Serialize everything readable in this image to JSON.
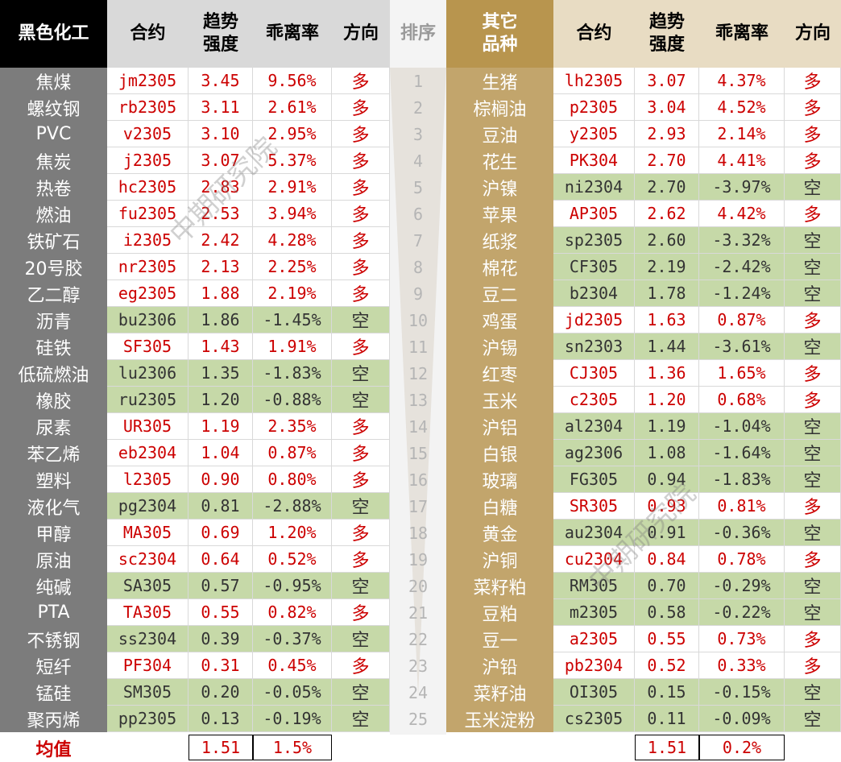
{
  "headers": {
    "left_category": "黑色化工",
    "contract": "合约",
    "strength_line1": "趋势",
    "strength_line2": "强度",
    "deviation": "乖离率",
    "direction": "方向",
    "rank": "排序",
    "right_category_line1": "其它",
    "right_category_line2": "品种"
  },
  "colors": {
    "long_text": "#cc0000",
    "short_text": "#333333",
    "short_bg": "#c6d9a8",
    "long_bg": "#ffffff",
    "left_name_bg": "#7c7c7c",
    "right_name_bg": "#c2a56c"
  },
  "left_rows": [
    {
      "name": "焦煤",
      "contract": "jm2305",
      "strength": "3.45",
      "deviation": "9.56%",
      "dir": "多"
    },
    {
      "name": "螺纹钢",
      "contract": "rb2305",
      "strength": "3.11",
      "deviation": "2.61%",
      "dir": "多"
    },
    {
      "name": "PVC",
      "contract": "v2305",
      "strength": "3.10",
      "deviation": "2.95%",
      "dir": "多"
    },
    {
      "name": "焦炭",
      "contract": "j2305",
      "strength": "3.07",
      "deviation": "5.37%",
      "dir": "多"
    },
    {
      "name": "热卷",
      "contract": "hc2305",
      "strength": "2.83",
      "deviation": "2.91%",
      "dir": "多"
    },
    {
      "name": "燃油",
      "contract": "fu2305",
      "strength": "2.53",
      "deviation": "3.94%",
      "dir": "多"
    },
    {
      "name": "铁矿石",
      "contract": "i2305",
      "strength": "2.42",
      "deviation": "4.28%",
      "dir": "多"
    },
    {
      "name": "20号胶",
      "contract": "nr2305",
      "strength": "2.13",
      "deviation": "2.25%",
      "dir": "多"
    },
    {
      "name": "乙二醇",
      "contract": "eg2305",
      "strength": "1.88",
      "deviation": "2.19%",
      "dir": "多"
    },
    {
      "name": "沥青",
      "contract": "bu2306",
      "strength": "1.86",
      "deviation": "-1.45%",
      "dir": "空"
    },
    {
      "name": "硅铁",
      "contract": "SF305",
      "strength": "1.43",
      "deviation": "1.91%",
      "dir": "多"
    },
    {
      "name": "低硫燃油",
      "contract": "lu2306",
      "strength": "1.35",
      "deviation": "-1.83%",
      "dir": "空"
    },
    {
      "name": "橡胶",
      "contract": "ru2305",
      "strength": "1.20",
      "deviation": "-0.88%",
      "dir": "空"
    },
    {
      "name": "尿素",
      "contract": "UR305",
      "strength": "1.19",
      "deviation": "2.35%",
      "dir": "多"
    },
    {
      "name": "苯乙烯",
      "contract": "eb2304",
      "strength": "1.04",
      "deviation": "0.87%",
      "dir": "多"
    },
    {
      "name": "塑料",
      "contract": "l2305",
      "strength": "0.90",
      "deviation": "0.80%",
      "dir": "多"
    },
    {
      "name": "液化气",
      "contract": "pg2304",
      "strength": "0.81",
      "deviation": "-2.88%",
      "dir": "空"
    },
    {
      "name": "甲醇",
      "contract": "MA305",
      "strength": "0.69",
      "deviation": "1.20%",
      "dir": "多"
    },
    {
      "name": "原油",
      "contract": "sc2304",
      "strength": "0.64",
      "deviation": "0.52%",
      "dir": "多"
    },
    {
      "name": "纯碱",
      "contract": "SA305",
      "strength": "0.57",
      "deviation": "-0.95%",
      "dir": "空"
    },
    {
      "name": "PTA",
      "contract": "TA305",
      "strength": "0.55",
      "deviation": "0.82%",
      "dir": "多"
    },
    {
      "name": "不锈钢",
      "contract": "ss2304",
      "strength": "0.39",
      "deviation": "-0.37%",
      "dir": "空"
    },
    {
      "name": "短纤",
      "contract": "PF304",
      "strength": "0.31",
      "deviation": "0.45%",
      "dir": "多"
    },
    {
      "name": "锰硅",
      "contract": "SM305",
      "strength": "0.20",
      "deviation": "-0.05%",
      "dir": "空"
    },
    {
      "name": "聚丙烯",
      "contract": "pp2305",
      "strength": "0.13",
      "deviation": "-0.19%",
      "dir": "空"
    }
  ],
  "ranks": [
    "1",
    "2",
    "3",
    "4",
    "5",
    "6",
    "7",
    "8",
    "9",
    "10",
    "11",
    "12",
    "13",
    "14",
    "15",
    "16",
    "17",
    "18",
    "19",
    "20",
    "21",
    "22",
    "23",
    "24",
    "25"
  ],
  "right_rows": [
    {
      "name": "生猪",
      "contract": "lh2305",
      "strength": "3.07",
      "deviation": "4.37%",
      "dir": "多"
    },
    {
      "name": "棕榈油",
      "contract": "p2305",
      "strength": "3.04",
      "deviation": "4.52%",
      "dir": "多"
    },
    {
      "name": "豆油",
      "contract": "y2305",
      "strength": "2.93",
      "deviation": "2.14%",
      "dir": "多"
    },
    {
      "name": "花生",
      "contract": "PK304",
      "strength": "2.70",
      "deviation": "4.41%",
      "dir": "多"
    },
    {
      "name": "沪镍",
      "contract": "ni2304",
      "strength": "2.70",
      "deviation": "-3.97%",
      "dir": "空"
    },
    {
      "name": "苹果",
      "contract": "AP305",
      "strength": "2.62",
      "deviation": "4.42%",
      "dir": "多"
    },
    {
      "name": "纸浆",
      "contract": "sp2305",
      "strength": "2.60",
      "deviation": "-3.32%",
      "dir": "空"
    },
    {
      "name": "棉花",
      "contract": "CF305",
      "strength": "2.19",
      "deviation": "-2.42%",
      "dir": "空"
    },
    {
      "name": "豆二",
      "contract": "b2304",
      "strength": "1.78",
      "deviation": "-1.24%",
      "dir": "空"
    },
    {
      "name": "鸡蛋",
      "contract": "jd2305",
      "strength": "1.63",
      "deviation": "0.87%",
      "dir": "多"
    },
    {
      "name": "沪锡",
      "contract": "sn2303",
      "strength": "1.44",
      "deviation": "-3.61%",
      "dir": "空"
    },
    {
      "name": "红枣",
      "contract": "CJ305",
      "strength": "1.36",
      "deviation": "1.65%",
      "dir": "多"
    },
    {
      "name": "玉米",
      "contract": "c2305",
      "strength": "1.20",
      "deviation": "0.68%",
      "dir": "多"
    },
    {
      "name": "沪铝",
      "contract": "al2304",
      "strength": "1.19",
      "deviation": "-1.04%",
      "dir": "空"
    },
    {
      "name": "白银",
      "contract": "ag2306",
      "strength": "1.08",
      "deviation": "-1.64%",
      "dir": "空"
    },
    {
      "name": "玻璃",
      "contract": "FG305",
      "strength": "0.94",
      "deviation": "-1.83%",
      "dir": "空"
    },
    {
      "name": "白糖",
      "contract": "SR305",
      "strength": "0.93",
      "deviation": "0.81%",
      "dir": "多"
    },
    {
      "name": "黄金",
      "contract": "au2304",
      "strength": "0.91",
      "deviation": "-0.36%",
      "dir": "空"
    },
    {
      "name": "沪铜",
      "contract": "cu2304",
      "strength": "0.84",
      "deviation": "0.78%",
      "dir": "多"
    },
    {
      "name": "菜籽粕",
      "contract": "RM305",
      "strength": "0.70",
      "deviation": "-0.29%",
      "dir": "空"
    },
    {
      "name": "豆粕",
      "contract": "m2305",
      "strength": "0.58",
      "deviation": "-0.22%",
      "dir": "空"
    },
    {
      "name": "豆一",
      "contract": "a2305",
      "strength": "0.55",
      "deviation": "0.73%",
      "dir": "多"
    },
    {
      "name": "沪铅",
      "contract": "pb2304",
      "strength": "0.52",
      "deviation": "0.33%",
      "dir": "多"
    },
    {
      "name": "菜籽油",
      "contract": "OI305",
      "strength": "0.15",
      "deviation": "-0.15%",
      "dir": "空"
    },
    {
      "name": "玉米淀粉",
      "contract": "cs2305",
      "strength": "0.11",
      "deviation": "-0.09%",
      "dir": "空"
    }
  ],
  "footer": {
    "label": "均值",
    "left_avg_strength": "1.51",
    "left_avg_deviation": "1.5%",
    "right_avg_strength": "1.51",
    "right_avg_deviation": "0.2%"
  },
  "watermark": "中期研究院"
}
